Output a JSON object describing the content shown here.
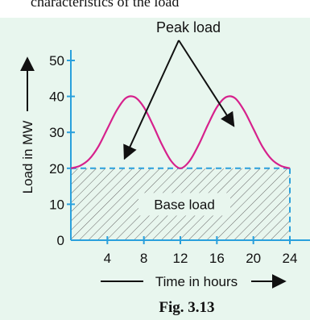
{
  "header_fragment": "characteristics of the load",
  "chart_data": {
    "type": "line",
    "xlabel": "Time in hours",
    "ylabel": "Load in MW",
    "xlim": [
      0,
      24
    ],
    "ylim": [
      0,
      55
    ],
    "x_ticks": [
      4,
      8,
      12,
      16,
      20,
      24
    ],
    "y_ticks": [
      0,
      10,
      20,
      30,
      40,
      50
    ],
    "grid": false,
    "series": [
      {
        "x": [
          0,
          1,
          2,
          3,
          4,
          5,
          6,
          7,
          8,
          9,
          10,
          11,
          12,
          13,
          14,
          15,
          16,
          17,
          18,
          19,
          20,
          21,
          22,
          23,
          24
        ],
        "y": [
          20,
          20.7,
          22.5,
          26,
          31,
          36,
          39.5,
          39.8,
          37,
          32,
          26.5,
          22,
          20,
          22,
          26.5,
          32,
          37,
          39.8,
          39.5,
          36,
          31,
          26,
          22.5,
          20.7,
          20
        ]
      }
    ],
    "regions": [
      {
        "label": "Base load",
        "x": [
          0,
          24
        ],
        "y": [
          0,
          20
        ],
        "pattern": "hatched"
      }
    ],
    "annotations": [
      {
        "text": "Peak load",
        "points_to": [
          [
            5,
            20
          ],
          [
            14.5,
            30
          ]
        ]
      }
    ],
    "caption": "Fig. 3.13",
    "colors": {
      "background": "#e8f6ee",
      "curve": "#d6218c",
      "axis": "#2aa0dc",
      "text": "#111111"
    }
  }
}
